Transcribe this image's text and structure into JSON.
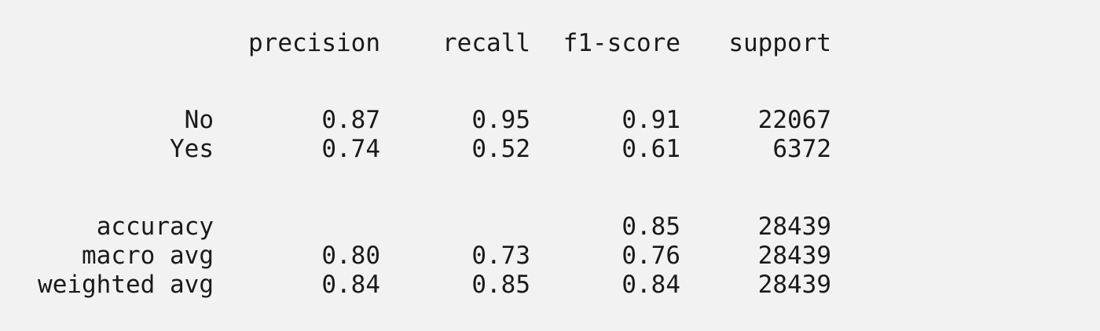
{
  "report": {
    "headers": {
      "precision": "precision",
      "recall": "recall",
      "f1": "f1-score",
      "support": "support"
    },
    "classes": [
      {
        "label": "No",
        "precision": "0.87",
        "recall": "0.95",
        "f1": "0.91",
        "support": "22067"
      },
      {
        "label": "Yes",
        "precision": "0.74",
        "recall": "0.52",
        "f1": "0.61",
        "support": "6372"
      }
    ],
    "accuracy": {
      "label": "accuracy",
      "f1": "0.85",
      "support": "28439"
    },
    "macro_avg": {
      "label": "macro avg",
      "precision": "0.80",
      "recall": "0.73",
      "f1": "0.76",
      "support": "28439"
    },
    "weighted_avg": {
      "label": "weighted avg",
      "precision": "0.84",
      "recall": "0.85",
      "f1": "0.84",
      "support": "28439"
    }
  },
  "colors": {
    "background": "#f2f2f2",
    "text": "#1a1a1a"
  }
}
